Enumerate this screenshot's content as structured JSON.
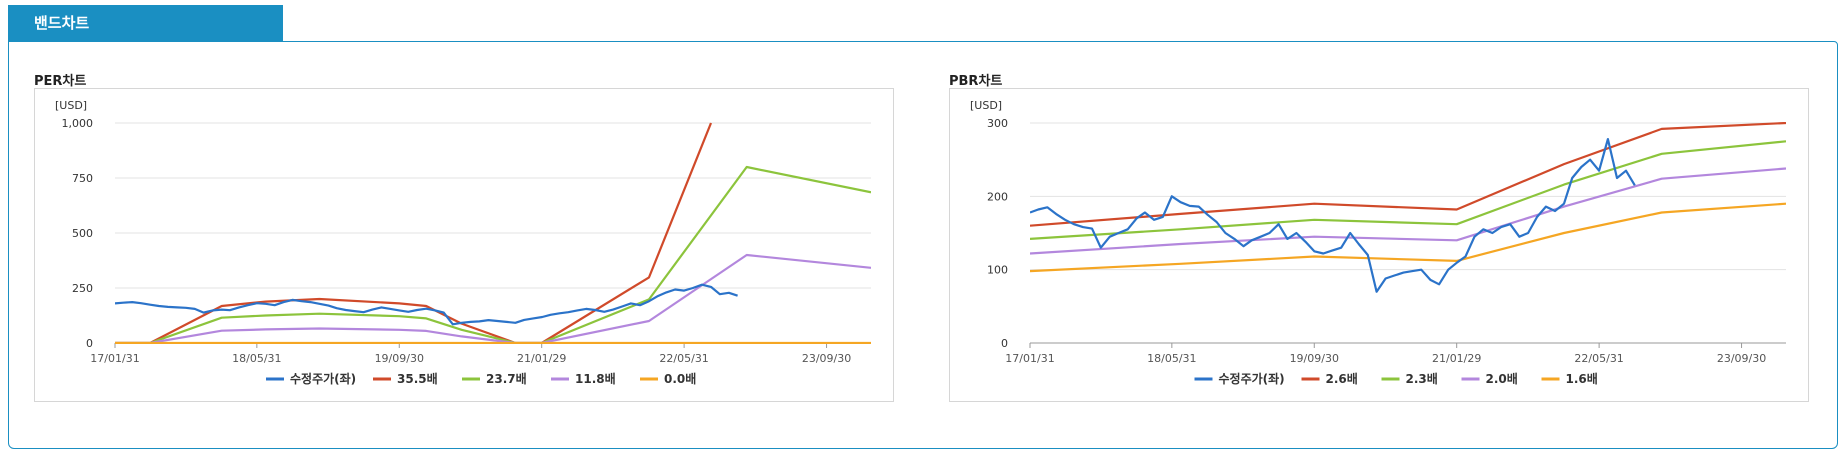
{
  "section_tab": "밴드차트",
  "chart_data": [
    {
      "type": "line",
      "title": "PER차트",
      "unit": "[USD]",
      "ylim": [
        0,
        1000
      ],
      "yticks": [
        "0",
        "250",
        "500",
        "750",
        "1,000"
      ],
      "ytick_values": [
        0,
        250,
        500,
        750,
        1000
      ],
      "xlim": [
        "2017-01-31",
        "2024-02-29"
      ],
      "xticks": [
        "17/01/31",
        "18/05/31",
        "19/09/30",
        "21/01/29",
        "22/05/31",
        "23/09/30"
      ],
      "xtick_dates": [
        "2017-01-31",
        "2018-05-31",
        "2019-09-30",
        "2021-01-29",
        "2022-05-31",
        "2023-09-30"
      ],
      "grid": true,
      "legend_position": "bottom",
      "series": [
        {
          "name": "수정주가(좌)",
          "color": "#2b73c9",
          "points": [
            [
              "2017-01-31",
              180
            ],
            [
              "2017-02-28",
              183
            ],
            [
              "2017-03-31",
              186
            ],
            [
              "2017-04-30",
              181
            ],
            [
              "2017-05-31",
              174
            ],
            [
              "2017-06-30",
              168
            ],
            [
              "2017-07-31",
              164
            ],
            [
              "2017-08-31",
              162
            ],
            [
              "2017-09-30",
              160
            ],
            [
              "2017-10-31",
              155
            ],
            [
              "2017-11-30",
              138
            ],
            [
              "2017-12-31",
              148
            ],
            [
              "2018-01-31",
              152
            ],
            [
              "2018-02-28",
              149
            ],
            [
              "2018-03-31",
              162
            ],
            [
              "2018-04-30",
              172
            ],
            [
              "2018-05-31",
              181
            ],
            [
              "2018-06-30",
              178
            ],
            [
              "2018-07-31",
              172
            ],
            [
              "2018-08-31",
              186
            ],
            [
              "2018-09-30",
              196
            ],
            [
              "2018-10-31",
              190
            ],
            [
              "2018-11-30",
              186
            ],
            [
              "2018-12-31",
              178
            ],
            [
              "2019-01-31",
              170
            ],
            [
              "2019-02-28",
              158
            ],
            [
              "2019-03-31",
              150
            ],
            [
              "2019-04-30",
              145
            ],
            [
              "2019-05-31",
              140
            ],
            [
              "2019-06-30",
              152
            ],
            [
              "2019-07-31",
              162
            ],
            [
              "2019-08-31",
              155
            ],
            [
              "2019-09-30",
              148
            ],
            [
              "2019-10-31",
              142
            ],
            [
              "2019-11-30",
              150
            ],
            [
              "2019-12-31",
              156
            ],
            [
              "2020-01-31",
              148
            ],
            [
              "2020-02-29",
              138
            ],
            [
              "2020-03-31",
              85
            ],
            [
              "2020-04-30",
              92
            ],
            [
              "2020-05-31",
              96
            ],
            [
              "2020-06-30",
              98
            ],
            [
              "2020-07-31",
              104
            ],
            [
              "2020-08-31",
              100
            ],
            [
              "2020-09-30",
              96
            ],
            [
              "2020-10-31",
              92
            ],
            [
              "2020-11-30",
              105
            ],
            [
              "2020-12-31",
              112
            ],
            [
              "2021-01-31",
              118
            ],
            [
              "2021-02-28",
              128
            ],
            [
              "2021-03-31",
              135
            ],
            [
              "2021-04-30",
              140
            ],
            [
              "2021-05-31",
              148
            ],
            [
              "2021-06-30",
              155
            ],
            [
              "2021-07-31",
              150
            ],
            [
              "2021-08-31",
              142
            ],
            [
              "2021-09-30",
              152
            ],
            [
              "2021-10-31",
              166
            ],
            [
              "2021-11-30",
              180
            ],
            [
              "2021-12-31",
              172
            ],
            [
              "2022-01-31",
              190
            ],
            [
              "2022-02-28",
              212
            ],
            [
              "2022-03-31",
              230
            ],
            [
              "2022-04-30",
              243
            ],
            [
              "2022-05-31",
              238
            ],
            [
              "2022-06-30",
              250
            ],
            [
              "2022-07-31",
              265
            ],
            [
              "2022-08-31",
              255
            ],
            [
              "2022-09-30",
              222
            ],
            [
              "2022-10-31",
              228
            ],
            [
              "2022-11-30",
              215
            ]
          ]
        },
        {
          "name": "35.5배",
          "color": "#d04a2a",
          "points": [
            [
              "2017-01-31",
              0
            ],
            [
              "2017-05-31",
              0
            ],
            [
              "2018-01-31",
              168
            ],
            [
              "2018-06-30",
              188
            ],
            [
              "2018-12-31",
              200
            ],
            [
              "2019-09-30",
              180
            ],
            [
              "2019-12-31",
              168
            ],
            [
              "2020-04-30",
              88
            ],
            [
              "2020-10-31",
              0
            ],
            [
              "2021-01-29",
              0
            ],
            [
              "2022-01-31",
              298
            ],
            [
              "2022-08-31",
              1000
            ]
          ]
        },
        {
          "name": "23.7배",
          "color": "#8cc43c",
          "points": [
            [
              "2017-01-31",
              0
            ],
            [
              "2017-05-31",
              0
            ],
            [
              "2018-01-31",
              115
            ],
            [
              "2018-06-30",
              125
            ],
            [
              "2018-12-31",
              133
            ],
            [
              "2019-09-30",
              122
            ],
            [
              "2019-12-31",
              112
            ],
            [
              "2020-04-30",
              60
            ],
            [
              "2020-10-31",
              0
            ],
            [
              "2021-01-29",
              0
            ],
            [
              "2022-01-31",
              198
            ],
            [
              "2022-12-31",
              800
            ],
            [
              "2024-02-29",
              685
            ]
          ]
        },
        {
          "name": "11.8배",
          "color": "#b387dd",
          "points": [
            [
              "2017-01-31",
              0
            ],
            [
              "2017-05-31",
              0
            ],
            [
              "2018-01-31",
              56
            ],
            [
              "2018-06-30",
              62
            ],
            [
              "2018-12-31",
              66
            ],
            [
              "2019-09-30",
              60
            ],
            [
              "2019-12-31",
              55
            ],
            [
              "2020-04-30",
              30
            ],
            [
              "2020-10-31",
              0
            ],
            [
              "2021-01-29",
              0
            ],
            [
              "2022-01-31",
              100
            ],
            [
              "2022-12-31",
              400
            ],
            [
              "2024-02-29",
              342
            ]
          ]
        },
        {
          "name": "0.0배",
          "color": "#f5a623",
          "points": [
            [
              "2017-01-31",
              0
            ],
            [
              "2024-02-29",
              0
            ]
          ]
        }
      ]
    },
    {
      "type": "line",
      "title": "PBR차트",
      "unit": "[USD]",
      "ylim": [
        0,
        300
      ],
      "yticks": [
        "0",
        "100",
        "200",
        "300"
      ],
      "ytick_values": [
        0,
        100,
        200,
        300
      ],
      "xlim": [
        "2017-01-31",
        "2024-02-29"
      ],
      "xticks": [
        "17/01/31",
        "18/05/31",
        "19/09/30",
        "21/01/29",
        "22/05/31",
        "23/09/30"
      ],
      "xtick_dates": [
        "2017-01-31",
        "2018-05-31",
        "2019-09-30",
        "2021-01-29",
        "2022-05-31",
        "2023-09-30"
      ],
      "grid": true,
      "legend_position": "bottom",
      "series": [
        {
          "name": "수정주가(좌)",
          "color": "#2b73c9",
          "points": [
            [
              "2017-01-31",
              178
            ],
            [
              "2017-02-28",
              182
            ],
            [
              "2017-03-31",
              185
            ],
            [
              "2017-04-30",
              176
            ],
            [
              "2017-05-31",
              168
            ],
            [
              "2017-06-30",
              162
            ],
            [
              "2017-07-31",
              158
            ],
            [
              "2017-08-31",
              156
            ],
            [
              "2017-09-30",
              130
            ],
            [
              "2017-10-31",
              145
            ],
            [
              "2017-11-30",
              150
            ],
            [
              "2017-12-31",
              155
            ],
            [
              "2018-01-31",
              170
            ],
            [
              "2018-02-28",
              178
            ],
            [
              "2018-03-31",
              168
            ],
            [
              "2018-04-30",
              172
            ],
            [
              "2018-05-31",
              200
            ],
            [
              "2018-06-30",
              192
            ],
            [
              "2018-07-31",
              187
            ],
            [
              "2018-08-31",
              186
            ],
            [
              "2018-09-30",
              175
            ],
            [
              "2018-10-31",
              165
            ],
            [
              "2018-11-30",
              150
            ],
            [
              "2018-12-31",
              142
            ],
            [
              "2019-01-31",
              132
            ],
            [
              "2019-02-28",
              140
            ],
            [
              "2019-03-31",
              145
            ],
            [
              "2019-04-30",
              150
            ],
            [
              "2019-05-31",
              162
            ],
            [
              "2019-06-30",
              142
            ],
            [
              "2019-07-31",
              150
            ],
            [
              "2019-08-31",
              138
            ],
            [
              "2019-09-30",
              125
            ],
            [
              "2019-10-31",
              122
            ],
            [
              "2019-11-30",
              126
            ],
            [
              "2019-12-31",
              130
            ],
            [
              "2020-01-31",
              150
            ],
            [
              "2020-02-29",
              135
            ],
            [
              "2020-03-31",
              120
            ],
            [
              "2020-04-30",
              70
            ],
            [
              "2020-05-31",
              88
            ],
            [
              "2020-06-30",
              92
            ],
            [
              "2020-07-31",
              96
            ],
            [
              "2020-08-31",
              98
            ],
            [
              "2020-09-30",
              100
            ],
            [
              "2020-10-31",
              86
            ],
            [
              "2020-11-30",
              80
            ],
            [
              "2020-12-31",
              100
            ],
            [
              "2021-01-31",
              110
            ],
            [
              "2021-02-28",
              118
            ],
            [
              "2021-03-31",
              145
            ],
            [
              "2021-04-30",
              155
            ],
            [
              "2021-05-31",
              150
            ],
            [
              "2021-06-30",
              158
            ],
            [
              "2021-07-31",
              162
            ],
            [
              "2021-08-31",
              145
            ],
            [
              "2021-09-30",
              150
            ],
            [
              "2021-10-31",
              172
            ],
            [
              "2021-11-30",
              186
            ],
            [
              "2021-12-31",
              180
            ],
            [
              "2022-01-31",
              190
            ],
            [
              "2022-02-28",
              225
            ],
            [
              "2022-03-31",
              240
            ],
            [
              "2022-04-30",
              250
            ],
            [
              "2022-05-31",
              235
            ],
            [
              "2022-06-30",
              278
            ],
            [
              "2022-07-31",
              225
            ],
            [
              "2022-08-31",
              235
            ],
            [
              "2022-09-30",
              215
            ]
          ]
        },
        {
          "name": "2.6배",
          "color": "#d04a2a",
          "points": [
            [
              "2017-01-31",
              160
            ],
            [
              "2018-06-30",
              176
            ],
            [
              "2019-09-30",
              190
            ],
            [
              "2021-01-29",
              182
            ],
            [
              "2022-01-31",
              244
            ],
            [
              "2022-12-31",
              292
            ],
            [
              "2024-02-29",
              300
            ]
          ]
        },
        {
          "name": "2.3배",
          "color": "#8cc43c",
          "points": [
            [
              "2017-01-31",
              142
            ],
            [
              "2018-06-30",
              155
            ],
            [
              "2019-09-30",
              168
            ],
            [
              "2021-01-29",
              162
            ],
            [
              "2022-01-31",
              216
            ],
            [
              "2022-12-31",
              258
            ],
            [
              "2024-02-29",
              275
            ]
          ]
        },
        {
          "name": "2.0배",
          "color": "#b387dd",
          "points": [
            [
              "2017-01-31",
              122
            ],
            [
              "2018-06-30",
              135
            ],
            [
              "2019-09-30",
              145
            ],
            [
              "2021-01-29",
              140
            ],
            [
              "2022-01-31",
              186
            ],
            [
              "2022-12-31",
              224
            ],
            [
              "2024-02-29",
              238
            ]
          ]
        },
        {
          "name": "1.6배",
          "color": "#f5a623",
          "points": [
            [
              "2017-01-31",
              98
            ],
            [
              "2018-06-30",
              108
            ],
            [
              "2019-09-30",
              118
            ],
            [
              "2021-01-29",
              112
            ],
            [
              "2022-01-31",
              150
            ],
            [
              "2022-12-31",
              178
            ],
            [
              "2024-02-29",
              190
            ]
          ]
        }
      ]
    }
  ]
}
